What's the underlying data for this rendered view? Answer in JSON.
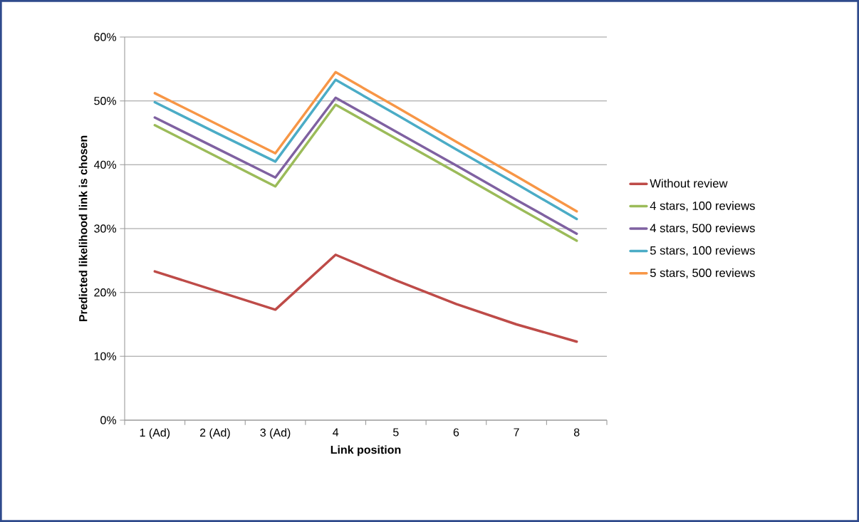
{
  "chart_data": {
    "type": "line",
    "xlabel": "Link position",
    "ylabel": "Predicted likelihood link is chosen",
    "categories": [
      "1 (Ad)",
      "2 (Ad)",
      "3 (Ad)",
      "4",
      "5",
      "6",
      "7",
      "8"
    ],
    "series": [
      {
        "name": "Without review",
        "color": "#be4b48",
        "values": [
          23.3,
          20.3,
          17.3,
          25.9,
          21.9,
          18.2,
          15.0,
          12.3
        ]
      },
      {
        "name": "4 stars, 100 reviews",
        "color": "#9bbb59",
        "values": [
          46.2,
          41.4,
          36.6,
          49.4,
          44.1,
          38.8,
          33.4,
          28.1
        ]
      },
      {
        "name": "4 stars, 500 reviews",
        "color": "#7f61a1",
        "values": [
          47.4,
          42.7,
          38.0,
          50.5,
          45.2,
          39.9,
          34.5,
          29.2
        ]
      },
      {
        "name": "5 stars, 100 reviews",
        "color": "#4bacc6",
        "values": [
          49.8,
          45.1,
          40.5,
          53.3,
          47.9,
          42.4,
          37.0,
          31.5
        ]
      },
      {
        "name": "5 stars, 500 reviews",
        "color": "#f79646",
        "values": [
          51.2,
          46.5,
          41.8,
          54.5,
          49.1,
          43.6,
          38.2,
          32.7
        ]
      }
    ],
    "ylim": [
      0,
      60
    ],
    "yticks": [
      {
        "value": 0,
        "label": "0%"
      },
      {
        "value": 10,
        "label": "10%"
      },
      {
        "value": 20,
        "label": "20%"
      },
      {
        "value": 30,
        "label": "30%"
      },
      {
        "value": 40,
        "label": "40%"
      },
      {
        "value": 50,
        "label": "50%"
      },
      {
        "value": 60,
        "label": "60%"
      }
    ],
    "grid": "y",
    "legend": "right",
    "marker": "none",
    "line_style": "solid"
  }
}
